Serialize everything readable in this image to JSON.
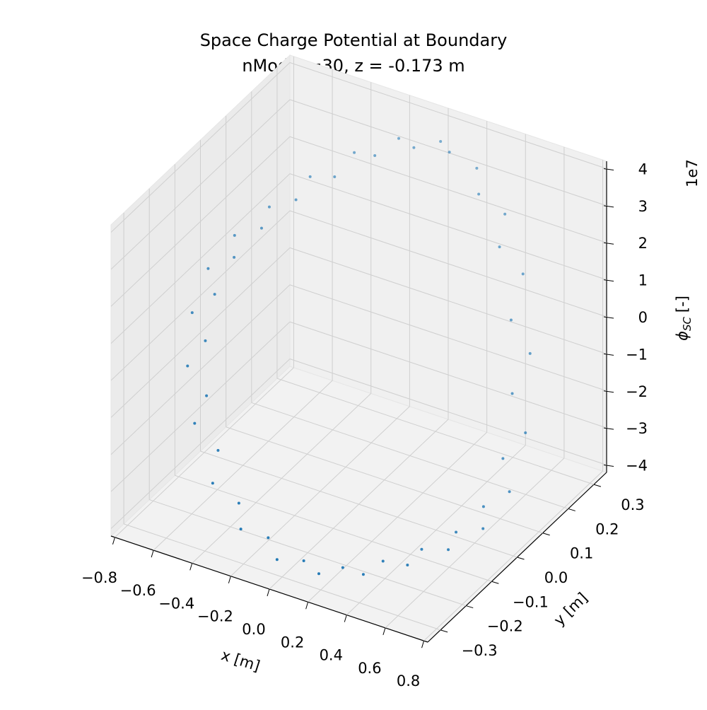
{
  "chart_data": {
    "type": "scatter3d",
    "title": "Space Charge Potential at Boundary",
    "subtitle": "nModes=30, z = -0.173 m",
    "xlabel": "x [m]",
    "ylabel": "y [m]",
    "zlabel": "ϕ",
    "zlabel_subscript": "SC",
    "zlabel_unit": "[-]",
    "z_offset_label": "1e7",
    "grid": true,
    "xlim": [
      -0.82,
      0.82
    ],
    "ylim": [
      -0.35,
      0.35
    ],
    "zlim": [
      -4.2,
      4.2
    ],
    "xticks": [
      {
        "value": -0.8,
        "label": "−0.8"
      },
      {
        "value": -0.6,
        "label": "−0.6"
      },
      {
        "value": -0.4,
        "label": "−0.4"
      },
      {
        "value": -0.2,
        "label": "−0.2"
      },
      {
        "value": 0,
        "label": "0.0"
      },
      0.2,
      0.4,
      0.6,
      0.8
    ],
    "yticks": [
      {
        "value": -0.3,
        "label": "−0.3"
      },
      {
        "value": -0.2,
        "label": "−0.2"
      },
      {
        "value": -0.1,
        "label": "−0.1"
      },
      {
        "value": 0,
        "label": "0.0"
      },
      0.1,
      0.2,
      0.3
    ],
    "zticks": [
      {
        "value": -4,
        "label": "−4"
      },
      {
        "value": -3,
        "label": "−3"
      },
      {
        "value": -2,
        "label": "−2"
      },
      {
        "value": -1,
        "label": "−1"
      },
      0,
      1,
      2,
      3,
      4
    ],
    "series": [
      {
        "color": "#1f77b4",
        "x": [
          0.78,
          0.753,
          0.675,
          0.551,
          0.39,
          0.202,
          0,
          -0.202,
          -0.39,
          -0.551,
          -0.675,
          -0.753,
          -0.78,
          -0.753,
          -0.675,
          -0.551,
          -0.39,
          -0.202,
          0,
          0.202,
          0.39,
          0.551,
          0.675,
          0.753,
          0.696,
          0.649,
          0.557,
          0.427,
          0.269,
          0.092,
          -0.092,
          -0.269,
          -0.427,
          -0.557,
          -0.649,
          -0.696,
          -0.696,
          -0.649,
          -0.557,
          -0.427,
          -0.269,
          -0.092,
          0.092,
          0.269,
          0.427,
          0.557,
          0.649,
          0.696
        ],
        "y": [
          0,
          0.083,
          0.16,
          0.226,
          0.277,
          0.309,
          0.32,
          0.309,
          0.277,
          0.226,
          0.16,
          0.083,
          0,
          -0.083,
          -0.16,
          -0.226,
          -0.277,
          -0.309,
          -0.32,
          -0.309,
          -0.277,
          -0.226,
          -0.16,
          -0.083,
          0.038,
          0.11,
          0.175,
          0.228,
          0.266,
          0.285,
          0.285,
          0.266,
          0.228,
          0.175,
          0.11,
          0.038,
          -0.038,
          -0.11,
          -0.175,
          -0.228,
          -0.266,
          -0.285,
          -0.285,
          -0.266,
          -0.228,
          -0.175,
          -0.11,
          -0.038
        ],
        "z": [
          -2.5,
          -1.5,
          0,
          1.5,
          2.5,
          3.2,
          3.5,
          3.3,
          2.8,
          2.2,
          1.6,
          1.2,
          0.8,
          0.2,
          -0.6,
          -1.5,
          -2.5,
          -3.2,
          -3.6,
          -3.7,
          -3.6,
          -3.4,
          -3.2,
          -3.0,
          -2.0,
          -0.8,
          0.6,
          2.0,
          2.9,
          3.6,
          3.4,
          3.0,
          2.4,
          1.9,
          1.4,
          1.0,
          0.5,
          -0.2,
          -1.1,
          -2.0,
          -2.9,
          -3.4,
          -3.7,
          -3.7,
          -3.5,
          -3.3,
          -3.1,
          -2.8
        ]
      }
    ]
  }
}
